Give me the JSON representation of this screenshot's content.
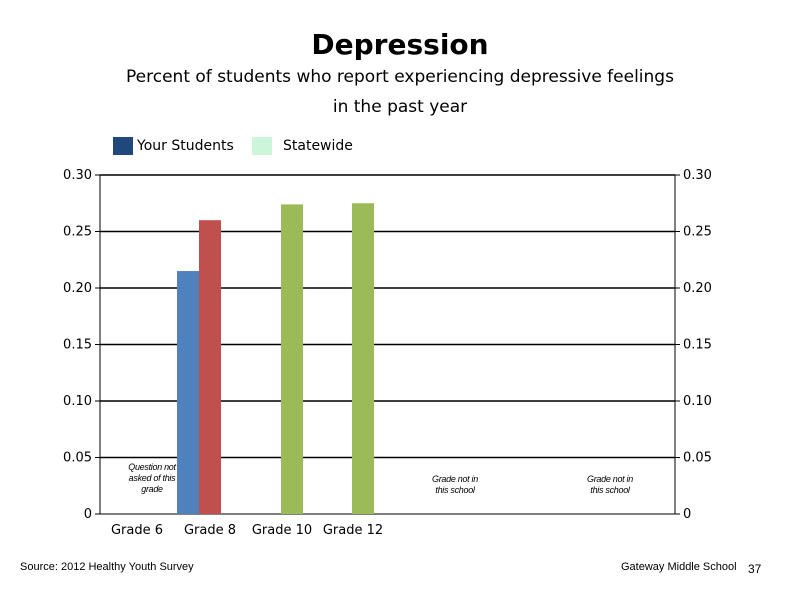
{
  "chart_data": {
    "type": "bar",
    "title": "Depression",
    "subtitle_line1": "Percent of students who report experiencing depressive feelings",
    "subtitle_line2": "in the past year",
    "categories": [
      "Grade 6",
      "Grade 8",
      "Grade 10",
      "Grade 12"
    ],
    "legend": [
      {
        "label": "Your Students",
        "color": "#1f497d"
      },
      {
        "label": "Statewide",
        "color": "#ccf5d9"
      }
    ],
    "series": [
      {
        "name": "Your Students",
        "values": [
          null,
          0.215,
          null,
          null
        ],
        "colors": [
          null,
          "#4f81bd",
          null,
          null
        ]
      },
      {
        "name": "Statewide",
        "values": [
          null,
          0.26,
          0.274,
          0.275
        ],
        "colors": [
          null,
          "#c0504d",
          "#9bbb59",
          "#9bbb59"
        ]
      }
    ],
    "ylim": [
      0,
      0.3
    ],
    "yticks": [
      "0",
      "0.05",
      "0.10",
      "0.15",
      "0.20",
      "0.25",
      "0.30"
    ],
    "grid": true,
    "legend_position": "top-left",
    "notes": [
      {
        "lines": [
          "Question not",
          "asked of this",
          "grade"
        ]
      },
      {
        "lines": [
          "Grade not in",
          "this school"
        ]
      },
      {
        "lines": [
          "Grade not in",
          "this school"
        ]
      }
    ]
  },
  "footer": {
    "source": "Source: 2012 Healthy Youth Survey",
    "school": "Gateway Middle  School",
    "page": "37"
  }
}
